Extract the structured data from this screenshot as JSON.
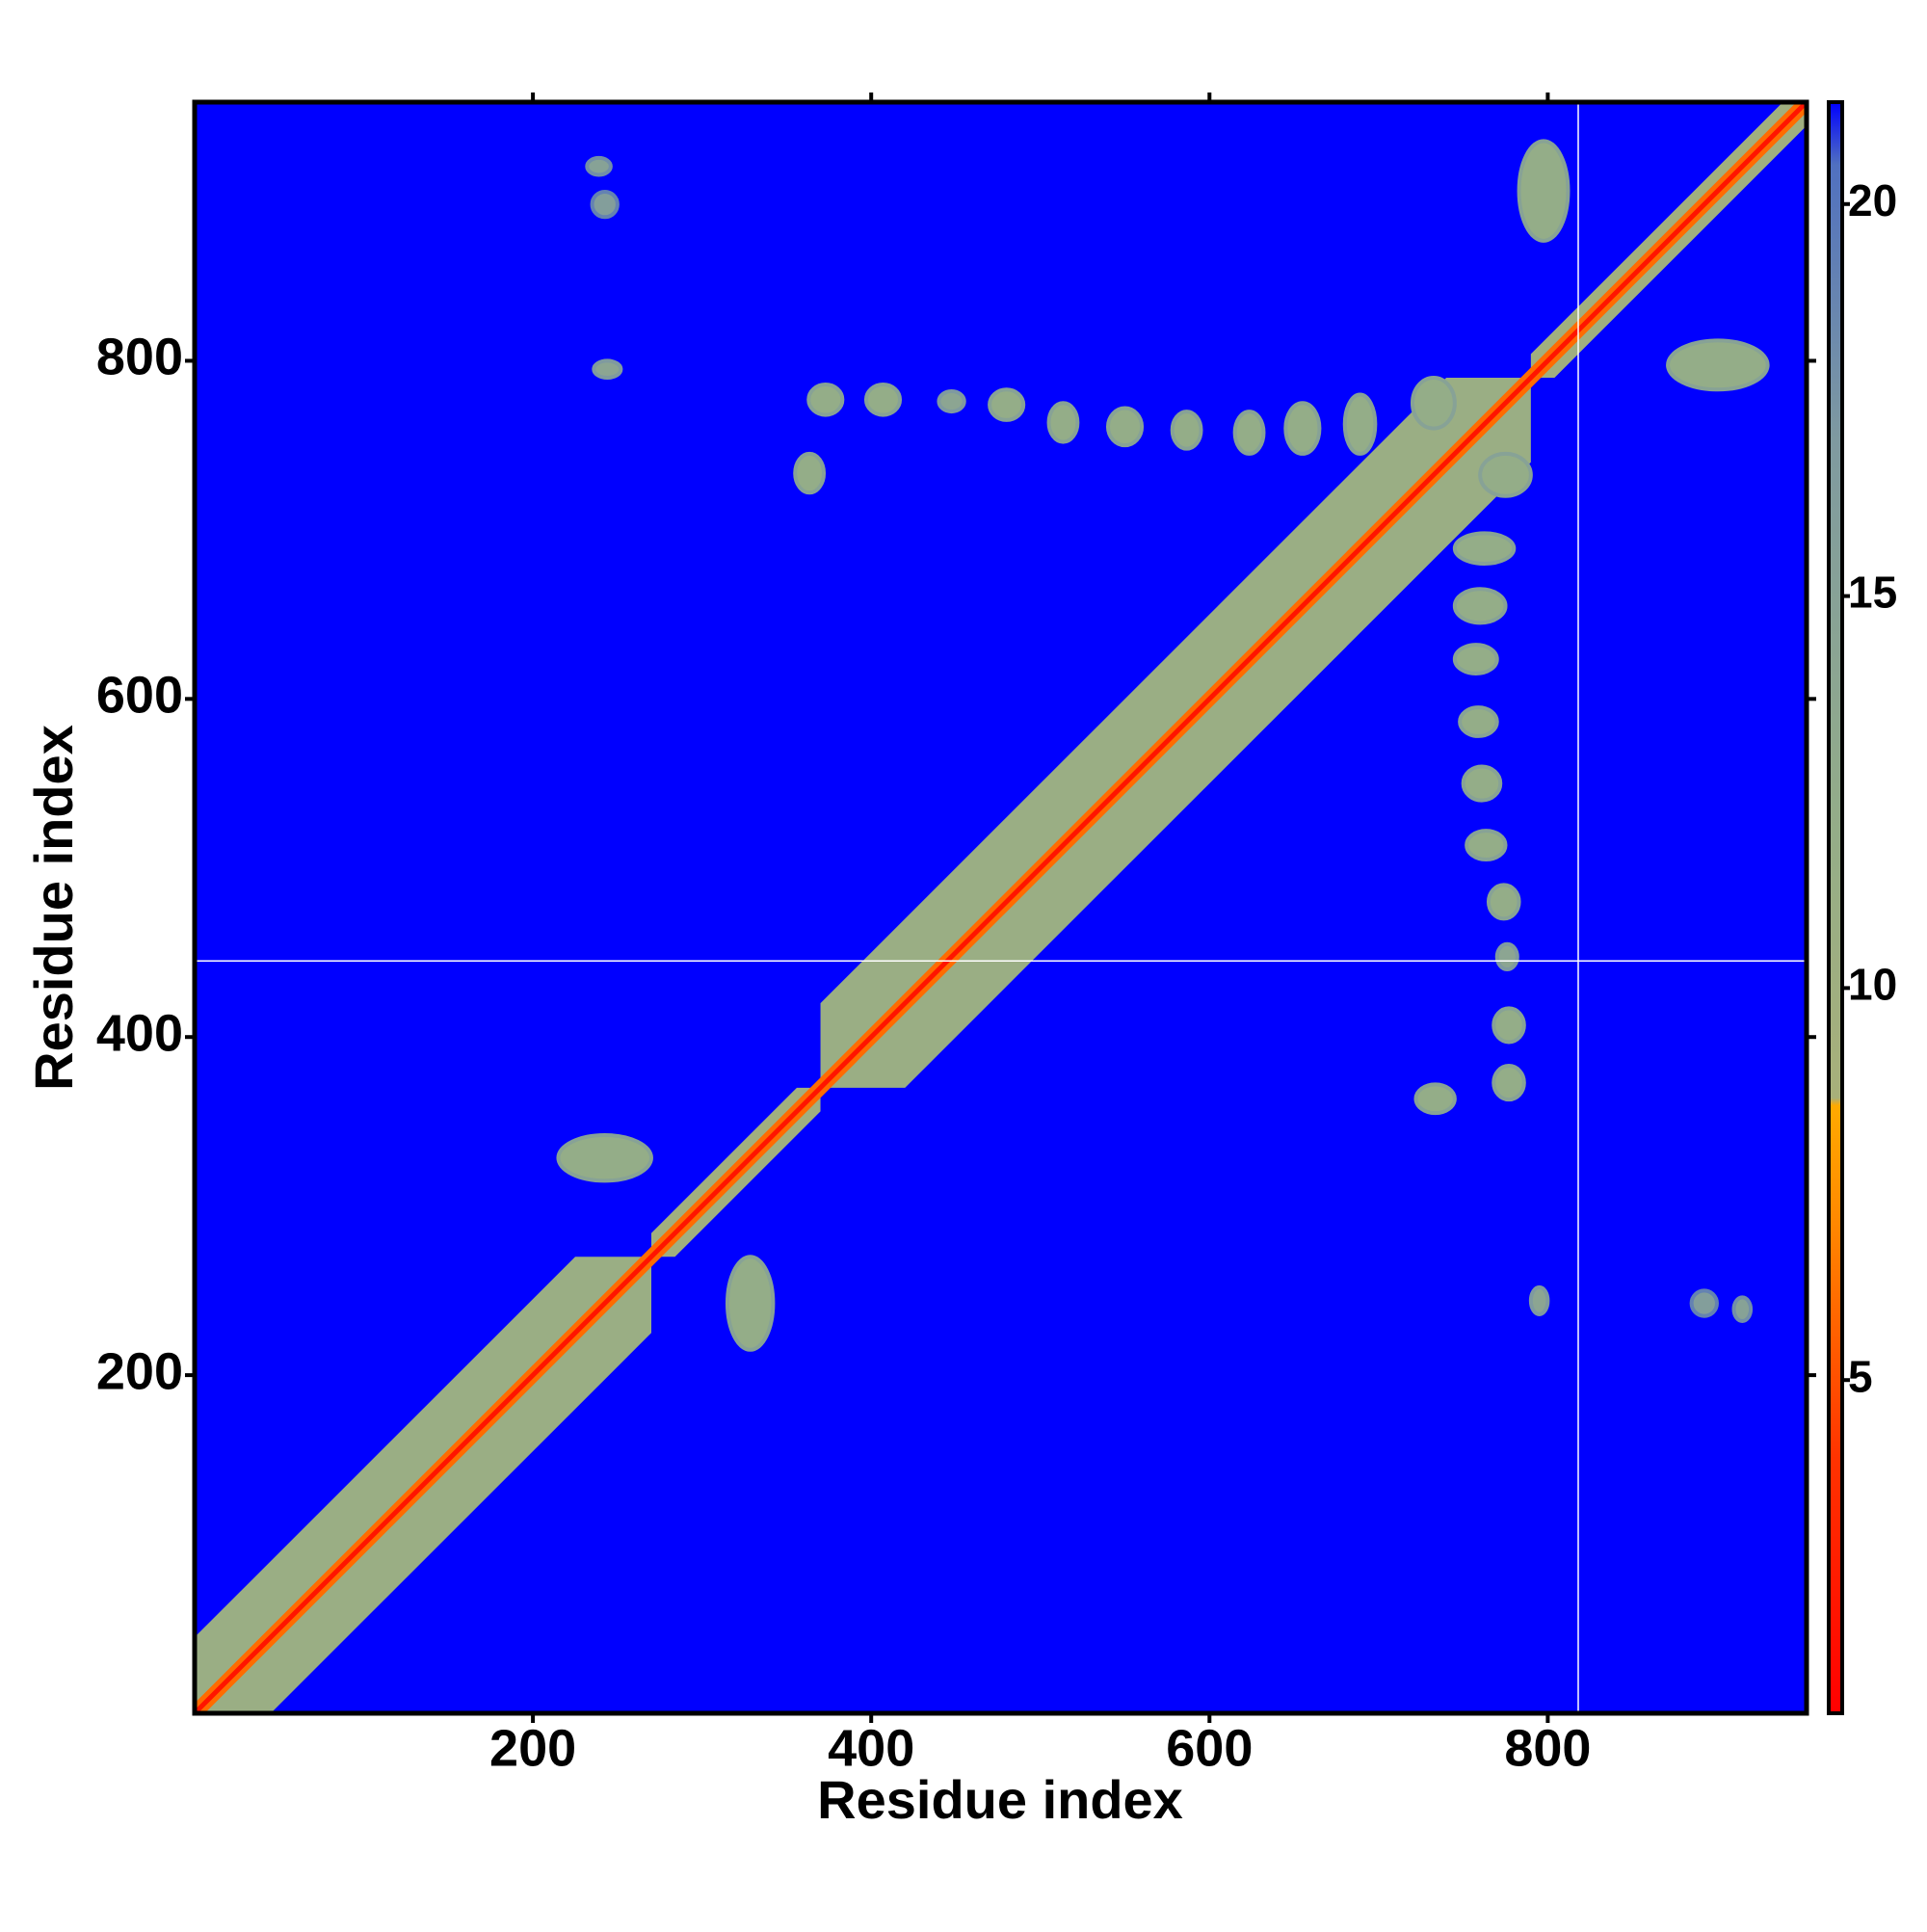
{
  "chart_data": {
    "type": "contact_map",
    "xlabel": "Residue index",
    "ylabel": "Residue index",
    "xlim": [
      0,
      953
    ],
    "ylim": [
      0,
      953
    ],
    "xticks": [
      200,
      400,
      600,
      800
    ],
    "yticks": [
      200,
      400,
      600,
      800
    ],
    "clim": [
      0.75,
      21.3
    ],
    "cticks": [
      5,
      10,
      15,
      20
    ],
    "background": "#0000ff",
    "colorscale": [
      [
        0.75,
        "#ff0000"
      ],
      [
        4,
        "#ff3300"
      ],
      [
        7,
        "#ff8800"
      ],
      [
        8.5,
        "#ffaa00"
      ],
      [
        8.6,
        "#a8b07a"
      ],
      [
        12,
        "#94ad88"
      ],
      [
        17,
        "#7f9aa0"
      ],
      [
        20.5,
        "#5070c0"
      ],
      [
        21.3,
        "#0000ff"
      ]
    ],
    "symmetric": true,
    "gaps": {
      "x": [
        818
      ],
      "y": [
        445
      ]
    },
    "bands": [
      {
        "start": 1,
        "end": 270,
        "offset": 45,
        "value": 11
      },
      {
        "start": 370,
        "end": 790,
        "offset": 50,
        "value": 11
      },
      {
        "start": 270,
        "end": 370,
        "offset": 14,
        "value": 10
      },
      {
        "start": 790,
        "end": 953,
        "offset": 14,
        "value": 10
      },
      {
        "start": 1,
        "end": 953,
        "offset": 6,
        "value": 6
      },
      {
        "start": 1,
        "end": 953,
        "offset": 2,
        "value": 2
      }
    ],
    "regions": [
      {
        "x": [
          783,
          812
        ],
        "y": [
          871,
          930
        ],
        "value": 12
      },
      {
        "x": [
          363,
          383
        ],
        "y": [
          768,
          786
        ],
        "value": 12
      },
      {
        "x": [
          397,
          417
        ],
        "y": [
          768,
          786
        ],
        "value": 12
      },
      {
        "x": [
          440,
          455
        ],
        "y": [
          770,
          782
        ],
        "value": 14
      },
      {
        "x": [
          470,
          490
        ],
        "y": [
          765,
          783
        ],
        "value": 12
      },
      {
        "x": [
          505,
          522
        ],
        "y": [
          752,
          775
        ],
        "value": 12
      },
      {
        "x": [
          540,
          560
        ],
        "y": [
          750,
          772
        ],
        "value": 12
      },
      {
        "x": [
          578,
          595
        ],
        "y": [
          748,
          770
        ],
        "value": 12
      },
      {
        "x": [
          615,
          632
        ],
        "y": [
          745,
          770
        ],
        "value": 12
      },
      {
        "x": [
          645,
          665
        ],
        "y": [
          745,
          775
        ],
        "value": 12
      },
      {
        "x": [
          680,
          698
        ],
        "y": [
          745,
          780
        ],
        "value": 12
      },
      {
        "x": [
          720,
          745
        ],
        "y": [
          760,
          790
        ],
        "value": 12
      },
      {
        "x": [
          355,
          372
        ],
        "y": [
          722,
          745
        ],
        "value": 12
      },
      {
        "x": [
          236,
          252
        ],
        "y": [
          790,
          800
        ],
        "value": 14
      },
      {
        "x": [
          232,
          246
        ],
        "y": [
          910,
          920
        ],
        "value": 15
      },
      {
        "x": [
          215,
          270
        ],
        "y": [
          315,
          342
        ],
        "value": 12
      },
      {
        "x": [
          235,
          250
        ],
        "y": [
          885,
          900
        ],
        "value": 16
      }
    ]
  }
}
